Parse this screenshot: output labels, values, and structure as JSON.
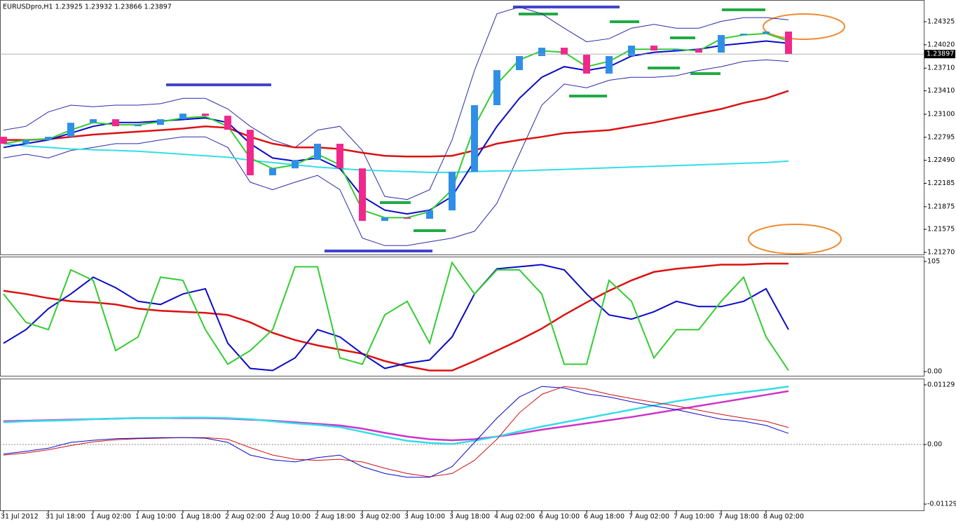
{
  "chart_data": [
    {
      "type": "candlestick",
      "title": "EURUSDpro,H1  1.23925 1.23932 1.23866 1.23897",
      "categories": [
        "31 Jul 2012",
        null,
        "31 Jul 18:00",
        null,
        "1 Aug 02:00",
        null,
        "1 Aug 10:00",
        null,
        "1 Aug 18:00",
        null,
        "2 Aug 02:00",
        null,
        "2 Aug 10:00",
        null,
        "2 Aug 18:00",
        null,
        "3 Aug 02:00",
        null,
        "3 Aug 10:00",
        null,
        "3 Aug 18:00",
        null,
        "4 Aug 02:00",
        null,
        "6 Aug 10:00",
        null,
        "6 Aug 18:00",
        null,
        "7 Aug 02:00",
        null,
        "7 Aug 10:00",
        null,
        "7 Aug 18:00",
        null,
        "8 Aug 02:00",
        null
      ],
      "open": [
        1.22801,
        1.22709,
        1.22755,
        1.22801,
        1.22987,
        1.23034,
        1.22941,
        1.22959,
        1.23034,
        1.23108,
        1.2308,
        1.22894,
        1.22291,
        1.22383,
        1.22495,
        1.22709,
        1.22383,
        1.21687,
        1.21733,
        1.21715,
        1.21826,
        1.22337,
        1.2322,
        1.23684,
        1.2387,
        1.23981,
        1.23888,
        1.23638,
        1.2387,
        1.24009,
        1.23944,
        1.23963,
        1.23916,
        1.24149,
        1.24167,
        1.24195
      ],
      "close": [
        1.22709,
        1.22755,
        1.22801,
        1.22987,
        1.23034,
        1.22941,
        1.22959,
        1.23034,
        1.23108,
        1.2308,
        1.22894,
        1.22291,
        1.22383,
        1.22495,
        1.22709,
        1.22383,
        1.21687,
        1.21733,
        1.21715,
        1.21826,
        1.22337,
        1.2322,
        1.23684,
        1.2387,
        1.23981,
        1.23888,
        1.23638,
        1.2387,
        1.24009,
        1.23944,
        1.23963,
        1.23916,
        1.24149,
        1.24167,
        1.24195,
        1.23897
      ],
      "up_color": "#2f8fe6",
      "down_color": "#f0288c",
      "series": [
        {
          "color": "#2a2aa8",
          "values": [
            1.2289,
            1.2294,
            1.2313,
            1.2322,
            1.232,
            1.2322,
            1.2322,
            1.2324,
            1.2331,
            1.2331,
            1.2317,
            1.2294,
            1.2276,
            1.2266,
            1.2289,
            1.2294,
            1.2262,
            1.2201,
            1.2197,
            1.221,
            1.2276,
            1.2368,
            1.2443,
            1.2452,
            1.2443,
            1.2424,
            1.2406,
            1.241,
            1.2424,
            1.2429,
            1.2424,
            1.2424,
            1.2433,
            1.2438,
            1.2438,
            1.2435
          ]
        },
        {
          "color": "#2a2aa8",
          "values": [
            1.2252,
            1.2257,
            1.2252,
            1.2262,
            1.2266,
            1.2271,
            1.2271,
            1.2276,
            1.228,
            1.228,
            1.2266,
            1.222,
            1.221,
            1.222,
            1.2229,
            1.221,
            1.2146,
            1.2136,
            1.2136,
            1.2141,
            1.2146,
            1.2155,
            1.2192,
            1.2257,
            1.2322,
            1.235,
            1.2345,
            1.2355,
            1.2359,
            1.2359,
            1.2361,
            1.2368,
            1.2373,
            1.238,
            1.2382,
            1.238
          ]
        },
        {
          "color": "#33dde8",
          "values": [
            1.2271,
            1.2268,
            1.2266,
            1.2264,
            1.2263,
            1.2262,
            1.2261,
            1.2259,
            1.2257,
            1.2255,
            1.2253,
            1.2249,
            1.2246,
            1.2243,
            1.224,
            1.2238,
            1.2236,
            1.2235,
            1.2234,
            1.2233,
            1.2233,
            1.2234,
            1.2235,
            1.2235,
            1.2236,
            1.2237,
            1.2238,
            1.2239,
            1.224,
            1.2241,
            1.2242,
            1.2243,
            1.2244,
            1.2245,
            1.2246,
            1.2248
          ]
        },
        {
          "color": "#dd1111",
          "values": [
            1.2276,
            1.2276,
            1.2277,
            1.228,
            1.2283,
            1.2285,
            1.2287,
            1.2289,
            1.2291,
            1.2294,
            1.2292,
            1.228,
            1.2271,
            1.2266,
            1.2266,
            1.2264,
            1.2259,
            1.2255,
            1.2254,
            1.2254,
            1.2255,
            1.2262,
            1.2271,
            1.2276,
            1.228,
            1.2285,
            1.2287,
            1.2289,
            1.2294,
            1.2299,
            1.2305,
            1.2311,
            1.2317,
            1.2325,
            1.2331,
            1.2341
          ]
        },
        {
          "color": "#0a0ac8",
          "values": [
            1.2266,
            1.2271,
            1.2276,
            1.2285,
            1.2294,
            1.2299,
            1.2299,
            1.2301,
            1.2303,
            1.2305,
            1.2299,
            1.2271,
            1.2252,
            1.2248,
            1.2252,
            1.2238,
            1.2201,
            1.2183,
            1.2178,
            1.2183,
            1.2201,
            1.2248,
            1.2294,
            1.2331,
            1.2359,
            1.2373,
            1.2368,
            1.2373,
            1.2387,
            1.2392,
            1.2394,
            1.2396,
            1.2401,
            1.2404,
            1.2407,
            1.2404
          ]
        },
        {
          "color": "#33cc33",
          "values": [
            1.2271,
            1.2276,
            1.2277,
            1.2289,
            1.2299,
            1.2296,
            1.2296,
            1.23,
            1.2305,
            1.2307,
            1.2294,
            1.2252,
            1.2238,
            1.2243,
            1.2257,
            1.2243,
            1.2183,
            1.2173,
            1.2173,
            1.2181,
            1.221,
            1.2294,
            1.235,
            1.2382,
            1.2394,
            1.2392,
            1.2373,
            1.238,
            1.2396,
            1.2396,
            1.2396,
            1.2394,
            1.241,
            1.2415,
            1.2417,
            1.2407
          ]
        }
      ],
      "current_price": 1.23897,
      "ylim": [
        1.21233,
        1.24613
      ],
      "yticks": [
        1.24325,
        {
          "value": 1.2402,
          "label": "1.24020"
        },
        {
          "value": 1.2371,
          "label": "1.23710"
        },
        {
          "value": 1.2341,
          "label": "1.23410"
        },
        {
          "value": 1.231,
          "label": "1.23100"
        },
        1.22795,
        {
          "value": 1.2249,
          "label": "1.22490"
        },
        1.22185,
        1.21875,
        1.21575,
        {
          "value": 1.2127,
          "label": "1.21270"
        }
      ]
    },
    {
      "type": "line",
      "series": [
        {
          "color": "#dd1111",
          "values": [
            77,
            74,
            70,
            67,
            66,
            64,
            60,
            58,
            57,
            56,
            54,
            47,
            37,
            30,
            25,
            21,
            17,
            10,
            5,
            1,
            1,
            10,
            20,
            30,
            41,
            54,
            66,
            77,
            87,
            95,
            98,
            100,
            102,
            102,
            103,
            103
          ]
        },
        {
          "color": "#0a0ac8",
          "values": [
            27,
            40,
            60,
            74,
            90,
            80,
            67,
            64,
            74,
            79,
            27,
            3,
            1,
            13,
            40,
            33,
            17,
            3,
            8,
            11,
            33,
            74,
            98,
            100,
            102,
            97,
            74,
            54,
            50,
            57,
            67,
            62,
            62,
            67,
            79,
            40
          ]
        },
        {
          "color": "#33cc33",
          "values": [
            74,
            47,
            40,
            97,
            87,
            20,
            33,
            90,
            87,
            40,
            7,
            20,
            40,
            100,
            100,
            13,
            7,
            54,
            67,
            27,
            104,
            74,
            97,
            97,
            74,
            7,
            7,
            87,
            67,
            13,
            40,
            40,
            67,
            90,
            33,
            1
          ]
        }
      ],
      "ylim": [
        -4.7,
        109
      ],
      "yticks": [
        105,
        {
          "value": 0,
          "label": "0.00"
        }
      ]
    },
    {
      "type": "line",
      "series": [
        {
          "color": "#cc33cc",
          "values": [
            0.0044,
            0.0045,
            0.0046,
            0.0047,
            0.0048,
            0.0049,
            0.005,
            0.005,
            0.005,
            0.005,
            0.0049,
            0.0047,
            0.0045,
            0.0042,
            0.0039,
            0.0036,
            0.003,
            0.0022,
            0.0015,
            0.001,
            0.0008,
            0.001,
            0.0015,
            0.0021,
            0.0028,
            0.0034,
            0.004,
            0.0046,
            0.0052,
            0.0059,
            0.0066,
            0.0073,
            0.008,
            0.0087,
            0.0094,
            0.0101
          ]
        },
        {
          "color": "#33dde8",
          "values": [
            0.0042,
            0.0044,
            0.0045,
            0.0046,
            0.0048,
            0.0049,
            0.005,
            0.005,
            0.0051,
            0.0051,
            0.005,
            0.0048,
            0.0044,
            0.004,
            0.0037,
            0.0033,
            0.0024,
            0.0015,
            0.0007,
            0.0003,
            0.0001,
            0.0007,
            0.0015,
            0.0025,
            0.0034,
            0.0042,
            0.005,
            0.0058,
            0.0066,
            0.0074,
            0.0082,
            0.0088,
            0.0094,
            0.0099,
            0.0104,
            0.011
          ]
        },
        {
          "color": "#cc1111",
          "values": [
            -0.002,
            -0.0016,
            -0.001,
            -0.0002,
            0.0005,
            0.0009,
            0.0011,
            0.0012,
            0.0013,
            0.0013,
            0.001,
            -0.0006,
            -0.002,
            -0.0028,
            -0.003,
            -0.0028,
            -0.0033,
            -0.0045,
            -0.0055,
            -0.0061,
            -0.0055,
            -0.003,
            0.001,
            0.006,
            0.0095,
            0.011,
            0.0105,
            0.0095,
            0.0087,
            0.008,
            0.0073,
            0.0065,
            0.0057,
            0.005,
            0.0044,
            0.0032
          ]
        },
        {
          "color": "#0a0ac8",
          "values": [
            -0.0018,
            -0.0013,
            -0.0007,
            0.0004,
            0.0008,
            0.0011,
            0.0012,
            0.0013,
            0.0013,
            0.0012,
            0.0004,
            -0.002,
            -0.0029,
            -0.0033,
            -0.0025,
            -0.002,
            -0.0042,
            -0.0055,
            -0.0062,
            -0.0062,
            -0.0042,
            0.0004,
            0.005,
            0.009,
            0.011,
            0.0107,
            0.0096,
            0.009,
            0.0081,
            0.0073,
            0.0066,
            0.0057,
            0.0048,
            0.0044,
            0.0036,
            0.0021
          ]
        }
      ],
      "zero_line": true,
      "ylim": [
        -0.01248,
        0.01235
      ],
      "yticks": [
        0.01129,
        {
          "value": 0,
          "label": "0.00"
        },
        -0.01129
      ]
    }
  ]
}
